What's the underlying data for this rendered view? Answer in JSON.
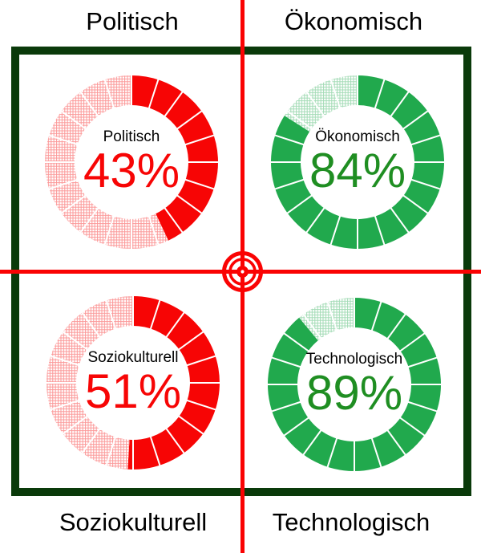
{
  "figure": {
    "description": "PEST quadrant diagram with four donut gauges",
    "frame_color": "#0a3a0a",
    "crosshair_color": "#fa0303",
    "background": "#ffffff"
  },
  "chart_data": [
    {
      "type": "donut",
      "quadrant": "top-left",
      "outer_label": "Politisch",
      "inner_label": "Politisch",
      "value": 43,
      "display": "43%",
      "segments": 20,
      "color": "#f70505",
      "remainder_style": "light-hatched",
      "value_text_color": "#f70505"
    },
    {
      "type": "donut",
      "quadrant": "top-right",
      "outer_label": "Ökonomisch",
      "inner_label": "Ökonomisch",
      "value": 84,
      "display": "84%",
      "segments": 20,
      "color": "#21a94d",
      "remainder_style": "light-hatched",
      "value_text_color": "#1f8e22"
    },
    {
      "type": "donut",
      "quadrant": "bottom-left",
      "outer_label": "Soziokulturell",
      "inner_label": "Soziokulturell",
      "value": 51,
      "display": "51%",
      "segments": 20,
      "color": "#f70505",
      "remainder_style": "light-hatched",
      "value_text_color": "#f70505"
    },
    {
      "type": "donut",
      "quadrant": "bottom-right",
      "outer_label": "Technologisch",
      "inner_label": "Technologisch",
      "value": 89,
      "display": "89%",
      "segments": 20,
      "color": "#21a94d",
      "remainder_style": "light-hatched",
      "value_text_color": "#1f8e22"
    }
  ]
}
